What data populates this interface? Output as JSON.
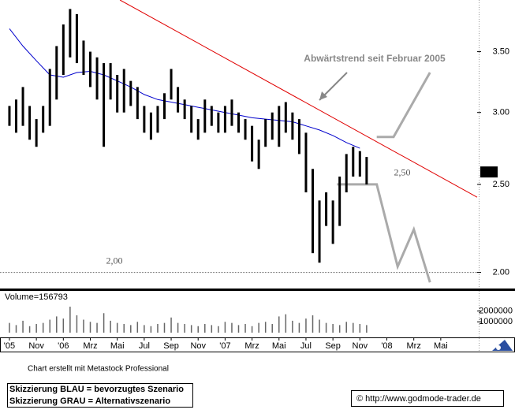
{
  "chart_data": [
    {
      "type": "range-bar",
      "annotation": "Abwärtstrend seit Februar 2005",
      "log_scale": true,
      "xlim": [
        -0.7,
        34.7
      ],
      "ylim": [
        1.92,
        3.99
      ],
      "xticks": [
        {
          "value": 0,
          "label": "'05"
        },
        {
          "value": 2,
          "label": "Nov"
        },
        {
          "value": 4,
          "label": "'06"
        },
        {
          "value": 6,
          "label": "Mrz"
        },
        {
          "value": 8,
          "label": "Mai"
        },
        {
          "value": 10,
          "label": "Jul"
        },
        {
          "value": 12,
          "label": "Sep"
        },
        {
          "value": 14,
          "label": "Nov"
        },
        {
          "value": 16,
          "label": "'07"
        },
        {
          "value": 18,
          "label": "Mrz"
        },
        {
          "value": 20,
          "label": "Mai"
        },
        {
          "value": 22,
          "label": "Jul"
        },
        {
          "value": 24,
          "label": "Sep"
        },
        {
          "value": 26,
          "label": "Nov"
        },
        {
          "value": 28,
          "label": "'08"
        },
        {
          "value": 30,
          "label": "Mrz"
        },
        {
          "value": 32,
          "label": "Mai"
        }
      ],
      "yticks": [
        {
          "value": 2.0,
          "label": "2.00"
        },
        {
          "value": 2.5,
          "label": "2.50"
        },
        {
          "value": 3.0,
          "label": "3.00"
        },
        {
          "value": 3.5,
          "label": "3.50"
        }
      ],
      "last_value": 2.58,
      "color": "#000000",
      "x": [
        0,
        0.5,
        1,
        1.5,
        2,
        2.5,
        3,
        3.5,
        4,
        4.5,
        5,
        5.5,
        6,
        6.5,
        7,
        7.5,
        8,
        8.5,
        9,
        9.5,
        10,
        10.5,
        11,
        11.5,
        12,
        12.5,
        13,
        13.5,
        14,
        14.5,
        15,
        15.5,
        16,
        16.5,
        17,
        17.5,
        18,
        18.5,
        19,
        19.5,
        20,
        20.5,
        21,
        21.5,
        22,
        22.5,
        23,
        23.5,
        24,
        24.5,
        25,
        25.5,
        26,
        26.5
      ],
      "high": [
        3.05,
        3.1,
        3.2,
        3.05,
        2.95,
        3.05,
        3.35,
        3.55,
        3.75,
        3.9,
        3.85,
        3.6,
        3.5,
        3.45,
        3.4,
        3.4,
        3.3,
        3.35,
        3.25,
        3.2,
        3.05,
        3.0,
        3.05,
        3.15,
        3.35,
        3.2,
        3.1,
        3.05,
        2.95,
        3.1,
        3.05,
        3.0,
        3.05,
        3.1,
        3.0,
        2.95,
        2.9,
        2.8,
        2.95,
        3.0,
        3.05,
        3.08,
        3.0,
        2.95,
        2.85,
        2.6,
        2.4,
        2.45,
        2.4,
        2.55,
        2.7,
        2.75,
        2.72,
        2.68
      ],
      "low": [
        2.9,
        2.85,
        2.9,
        2.8,
        2.75,
        2.85,
        2.9,
        3.1,
        3.3,
        3.45,
        3.4,
        3.3,
        3.2,
        3.1,
        2.75,
        3.1,
        3.0,
        3.0,
        3.05,
        2.95,
        2.85,
        2.8,
        2.85,
        2.95,
        3.1,
        3.0,
        2.95,
        2.85,
        2.8,
        2.85,
        2.9,
        2.85,
        2.85,
        2.9,
        2.85,
        2.8,
        2.65,
        2.6,
        2.75,
        2.8,
        2.75,
        2.85,
        2.8,
        2.7,
        2.45,
        2.1,
        2.05,
        2.25,
        2.15,
        2.25,
        2.45,
        2.55,
        2.55,
        2.5
      ],
      "moving_average": {
        "color": "#0000cc",
        "x": [
          0,
          1,
          2,
          3,
          4,
          5,
          6,
          7,
          8,
          9,
          10,
          11,
          12,
          13,
          14,
          15,
          16,
          17,
          18,
          19,
          20,
          21,
          22,
          23,
          24,
          25,
          26
        ],
        "values": [
          3.71,
          3.55,
          3.42,
          3.3,
          3.28,
          3.32,
          3.33,
          3.3,
          3.25,
          3.2,
          3.14,
          3.1,
          3.08,
          3.06,
          3.04,
          3.02,
          3.0,
          2.98,
          2.96,
          2.95,
          2.94,
          2.93,
          2.9,
          2.87,
          2.83,
          2.78,
          2.74
        ]
      },
      "trendline": {
        "color": "#e00000",
        "x": [
          8.2,
          34.7
        ],
        "values": [
          3.99,
          2.42
        ]
      },
      "scenarios": [
        {
          "color": "#aaaaaa",
          "x": [
            27.25,
            28.5,
            31.2
          ],
          "values": [
            2.82,
            2.82,
            3.32
          ]
        },
        {
          "color": "#aaaaaa",
          "x": [
            24.3,
            27.25,
            28.8,
            30,
            31.2
          ],
          "values": [
            2.5,
            2.5,
            2.03,
            2.23,
            1.95
          ]
        }
      ],
      "levels": [
        {
          "label": "2,00",
          "value": 2.0
        },
        {
          "label": "2,50",
          "value": 2.5
        }
      ]
    },
    {
      "type": "volume",
      "title": "Volume=156793",
      "color": "#666666",
      "ylim": [
        0,
        3860000
      ],
      "yticks": [
        1000000,
        2000000
      ],
      "values": [
        900000,
        700000,
        1100000,
        600000,
        800000,
        900000,
        1200000,
        1500000,
        1300000,
        2400000,
        1600000,
        1200000,
        1000000,
        900000,
        1800000,
        1100000,
        900000,
        800000,
        700000,
        1000000,
        700000,
        600000,
        800000,
        900000,
        1400000,
        900000,
        800000,
        700000,
        600000,
        800000,
        700000,
        600000,
        1000000,
        900000,
        700000,
        800000,
        600000,
        900000,
        1000000,
        800000,
        1500000,
        1700000,
        1100000,
        900000,
        1300000,
        1600000,
        1200000,
        900000,
        800000,
        700000,
        1000000,
        900000,
        800000,
        700000
      ]
    }
  ],
  "footer": {
    "credit": "Chart erstellt mit Metastock Professional",
    "legend_lines": [
      "Skizzierung BLAU = bevorzugtes Szenario",
      "Skizzierung GRAU = Alternativszenario"
    ],
    "url": "© http://www.godmode-trader.de"
  }
}
